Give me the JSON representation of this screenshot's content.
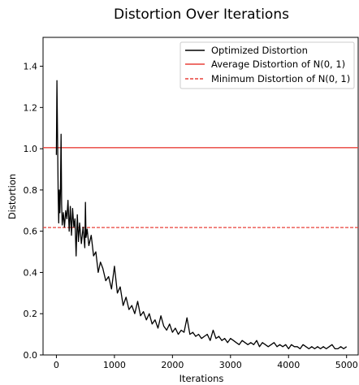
{
  "chart_data": {
    "type": "line",
    "title": "Distortion Over Iterations",
    "xlabel": "Iterations",
    "ylabel": "Distortion",
    "xlim": [
      -230,
      5200
    ],
    "ylim": [
      0.0,
      1.54
    ],
    "xticks": [
      0,
      1000,
      2000,
      3000,
      4000,
      5000
    ],
    "yticks": [
      0.0,
      0.2,
      0.4,
      0.6,
      0.8,
      1.0,
      1.2,
      1.4
    ],
    "grid": false,
    "legend_position": "top-right",
    "series": [
      {
        "name": "Optimized Distortion",
        "color": "#000000",
        "style": "solid",
        "x": [
          0,
          10,
          20,
          30,
          40,
          50,
          60,
          70,
          80,
          90,
          100,
          120,
          140,
          160,
          180,
          200,
          220,
          240,
          260,
          280,
          300,
          320,
          340,
          360,
          380,
          400,
          430,
          460,
          490,
          500,
          510,
          530,
          560,
          600,
          640,
          680,
          720,
          760,
          800,
          850,
          900,
          950,
          1000,
          1050,
          1100,
          1150,
          1200,
          1250,
          1300,
          1350,
          1400,
          1450,
          1500,
          1550,
          1600,
          1650,
          1700,
          1750,
          1800,
          1850,
          1900,
          1950,
          2000,
          2050,
          2100,
          2150,
          2200,
          2250,
          2300,
          2350,
          2400,
          2450,
          2500,
          2550,
          2600,
          2650,
          2700,
          2750,
          2800,
          2850,
          2900,
          2950,
          3000,
          3050,
          3100,
          3150,
          3200,
          3250,
          3300,
          3350,
          3400,
          3450,
          3500,
          3550,
          3600,
          3650,
          3700,
          3750,
          3800,
          3850,
          3900,
          3950,
          4000,
          4050,
          4100,
          4150,
          4200,
          4250,
          4300,
          4350,
          4400,
          4450,
          4500,
          4550,
          4600,
          4650,
          4700,
          4750,
          4800,
          4850,
          4900,
          4950,
          5000
        ],
        "values": [
          0.97,
          1.33,
          1.05,
          0.78,
          0.64,
          0.8,
          0.69,
          0.79,
          1.07,
          0.73,
          0.63,
          0.69,
          0.62,
          0.7,
          0.66,
          0.75,
          0.6,
          0.72,
          0.58,
          0.71,
          0.62,
          0.66,
          0.48,
          0.68,
          0.55,
          0.64,
          0.54,
          0.62,
          0.52,
          0.74,
          0.57,
          0.61,
          0.53,
          0.58,
          0.48,
          0.5,
          0.4,
          0.45,
          0.42,
          0.36,
          0.38,
          0.32,
          0.43,
          0.3,
          0.33,
          0.24,
          0.28,
          0.22,
          0.24,
          0.2,
          0.26,
          0.19,
          0.21,
          0.17,
          0.2,
          0.15,
          0.17,
          0.13,
          0.19,
          0.14,
          0.12,
          0.15,
          0.11,
          0.13,
          0.1,
          0.12,
          0.11,
          0.18,
          0.1,
          0.11,
          0.09,
          0.1,
          0.08,
          0.09,
          0.1,
          0.07,
          0.12,
          0.08,
          0.09,
          0.07,
          0.08,
          0.06,
          0.08,
          0.07,
          0.06,
          0.05,
          0.07,
          0.06,
          0.05,
          0.06,
          0.05,
          0.07,
          0.04,
          0.06,
          0.05,
          0.04,
          0.05,
          0.06,
          0.04,
          0.05,
          0.04,
          0.05,
          0.03,
          0.05,
          0.04,
          0.04,
          0.03,
          0.05,
          0.04,
          0.03,
          0.04,
          0.03,
          0.04,
          0.03,
          0.04,
          0.03,
          0.04,
          0.05,
          0.03,
          0.03,
          0.04,
          0.03,
          0.04
        ]
      },
      {
        "name": "Average Distortion of N(0, 1)",
        "color": "#e8403a",
        "style": "solid",
        "hline": 1.005
      },
      {
        "name": "Minimum Distortion of N(0, 1)",
        "color": "#e8403a",
        "style": "dashed",
        "hline": 0.618
      }
    ]
  }
}
